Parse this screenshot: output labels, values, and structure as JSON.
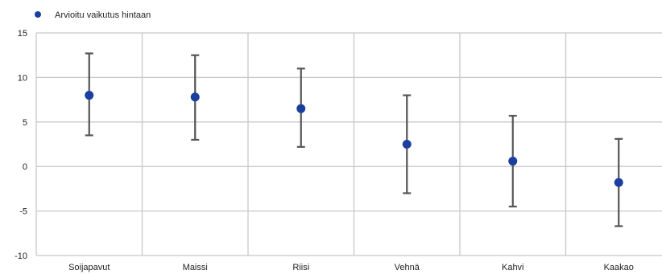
{
  "chart_data": {
    "type": "scatter",
    "categories": [
      "Soijapavut",
      "Maissi",
      "Riisi",
      "Vehnä",
      "Kahvi",
      "Kaakao"
    ],
    "series": [
      {
        "name": "Arvioitu vaikutus hintaan",
        "values": [
          8.0,
          7.8,
          6.5,
          2.5,
          0.6,
          -1.8
        ],
        "error_low": [
          3.5,
          3.0,
          2.2,
          -3.0,
          -4.5,
          -6.7
        ],
        "error_high": [
          12.7,
          12.5,
          11.0,
          8.0,
          5.7,
          3.1
        ],
        "color": "#1a3f9e"
      }
    ],
    "yticks": [
      15,
      10,
      5,
      0,
      -5,
      -10
    ],
    "ylim": [
      -10,
      15
    ],
    "grid": true,
    "legend_position": "top-left",
    "colors": {
      "marker": "#1a3f9e",
      "error_bar": "#555555",
      "grid": "#c8c8c8"
    }
  }
}
